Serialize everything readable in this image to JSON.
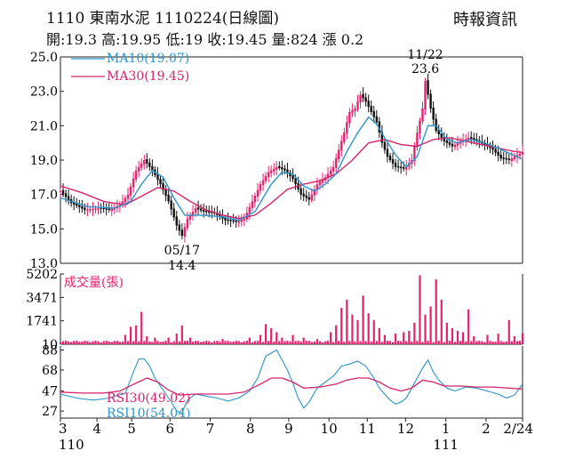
{
  "header": {
    "code": "1110",
    "name": "東南水泥",
    "date_label": "1110224(日線圖)",
    "source": "時報資訊",
    "quote": {
      "open_label": "開:",
      "open": "19.3",
      "high_label": "高:",
      "high": "19.95",
      "low_label": "低:",
      "low": "19",
      "close_label": "收:",
      "close": "19.45",
      "volume_label": "量:",
      "volume": "824",
      "change_label": "漲",
      "change": "0.2"
    }
  },
  "colors": {
    "up": "#e8206f",
    "down": "#111111",
    "ma10": "#2c95c9",
    "ma30": "#d6246c",
    "rsi30": "#d6246c",
    "rsi10": "#2c95c9",
    "axis": "#222222"
  },
  "chart_data": [
    {
      "type": "candlestick",
      "panel": "price",
      "yticks": [
        25.0,
        23.0,
        21.0,
        19.0,
        17.0,
        15.0,
        13.0
      ],
      "ylim": [
        13.0,
        25.0
      ],
      "legend": [
        {
          "label": "MA10(19.07)",
          "color": "#2c95c9"
        },
        {
          "label": "MA30(19.45)",
          "color": "#d6246c"
        }
      ],
      "annotations": [
        {
          "date": "11/22",
          "value": "23.6",
          "kind": "high"
        },
        {
          "date": "05/17",
          "value": "14.4",
          "kind": "low"
        }
      ],
      "price_path": [
        [
          0,
          17.2
        ],
        [
          4,
          16.5
        ],
        [
          9,
          16.1
        ],
        [
          14,
          16.2
        ],
        [
          18,
          16.1
        ],
        [
          22,
          16.4
        ],
        [
          25,
          17.0
        ],
        [
          28,
          18.4
        ],
        [
          31,
          19.0
        ],
        [
          34,
          18.4
        ],
        [
          37,
          17.6
        ],
        [
          40,
          16.6
        ],
        [
          43,
          15.2
        ],
        [
          45,
          14.6
        ],
        [
          47,
          15.6
        ],
        [
          50,
          16.2
        ],
        [
          53,
          16.0
        ],
        [
          57,
          15.9
        ],
        [
          61,
          15.5
        ],
        [
          65,
          15.4
        ],
        [
          68,
          15.6
        ],
        [
          71,
          16.6
        ],
        [
          74,
          17.6
        ],
        [
          77,
          18.3
        ],
        [
          80,
          18.6
        ],
        [
          83,
          18.4
        ],
        [
          86,
          17.9
        ],
        [
          89,
          17.0
        ],
        [
          92,
          16.7
        ],
        [
          95,
          17.6
        ],
        [
          98,
          18.0
        ],
        [
          101,
          18.6
        ],
        [
          103,
          19.6
        ],
        [
          105,
          20.6
        ],
        [
          107,
          21.8
        ],
        [
          109,
          22.0
        ],
        [
          111,
          22.8
        ],
        [
          113,
          22.4
        ],
        [
          115,
          21.8
        ],
        [
          117,
          21.2
        ],
        [
          119,
          20.0
        ],
        [
          121,
          19.2
        ],
        [
          124,
          18.6
        ],
        [
          127,
          18.5
        ],
        [
          130,
          19.0
        ],
        [
          132,
          20.6
        ],
        [
          134,
          22.0
        ],
        [
          135,
          23.6
        ],
        [
          137,
          22.0
        ],
        [
          139,
          20.7
        ],
        [
          142,
          20.1
        ],
        [
          145,
          19.8
        ],
        [
          148,
          20.1
        ],
        [
          151,
          20.3
        ],
        [
          154,
          20.1
        ],
        [
          157,
          19.9
        ],
        [
          160,
          19.6
        ],
        [
          163,
          19.1
        ],
        [
          166,
          19.0
        ],
        [
          169,
          19.3
        ],
        [
          171,
          19.45
        ]
      ],
      "ma10_path": [
        [
          0,
          16.8
        ],
        [
          10,
          16.3
        ],
        [
          20,
          16.2
        ],
        [
          26,
          16.6
        ],
        [
          30,
          17.6
        ],
        [
          34,
          18.4
        ],
        [
          38,
          18.0
        ],
        [
          42,
          16.8
        ],
        [
          46,
          15.8
        ],
        [
          52,
          15.8
        ],
        [
          60,
          15.7
        ],
        [
          66,
          15.5
        ],
        [
          72,
          16.0
        ],
        [
          78,
          17.6
        ],
        [
          82,
          18.3
        ],
        [
          86,
          18.2
        ],
        [
          90,
          17.5
        ],
        [
          94,
          17.2
        ],
        [
          98,
          17.6
        ],
        [
          102,
          18.2
        ],
        [
          106,
          19.5
        ],
        [
          110,
          20.6
        ],
        [
          114,
          21.5
        ],
        [
          117,
          21.1
        ],
        [
          120,
          20.3
        ],
        [
          124,
          19.3
        ],
        [
          128,
          18.6
        ],
        [
          132,
          19.2
        ],
        [
          136,
          21.0
        ],
        [
          139,
          21.0
        ],
        [
          143,
          20.2
        ],
        [
          147,
          20.0
        ],
        [
          152,
          20.2
        ],
        [
          157,
          20.0
        ],
        [
          162,
          19.7
        ],
        [
          166,
          19.4
        ],
        [
          171,
          19.07
        ]
      ],
      "ma30_path": [
        [
          0,
          17.5
        ],
        [
          8,
          17.1
        ],
        [
          16,
          16.6
        ],
        [
          24,
          16.4
        ],
        [
          30,
          16.9
        ],
        [
          36,
          17.4
        ],
        [
          42,
          17.2
        ],
        [
          48,
          16.6
        ],
        [
          54,
          16.1
        ],
        [
          60,
          15.8
        ],
        [
          66,
          15.6
        ],
        [
          72,
          15.8
        ],
        [
          78,
          16.5
        ],
        [
          84,
          17.3
        ],
        [
          90,
          17.6
        ],
        [
          96,
          17.8
        ],
        [
          102,
          18.2
        ],
        [
          108,
          19.0
        ],
        [
          114,
          20.0
        ],
        [
          120,
          20.2
        ],
        [
          126,
          19.9
        ],
        [
          132,
          19.8
        ],
        [
          138,
          20.2
        ],
        [
          144,
          20.3
        ],
        [
          150,
          20.1
        ],
        [
          156,
          19.9
        ],
        [
          162,
          19.7
        ],
        [
          168,
          19.5
        ],
        [
          171,
          19.45
        ]
      ]
    },
    {
      "type": "bar",
      "panel": "volume",
      "title": "成交量(張)",
      "yticks": [
        5202,
        3471,
        1741,
        10
      ],
      "ylim": [
        10,
        5202
      ],
      "spikes": [
        [
          24,
          700
        ],
        [
          26,
          1300
        ],
        [
          28,
          1400
        ],
        [
          30,
          2400
        ],
        [
          32,
          600
        ],
        [
          35,
          500
        ],
        [
          40,
          500
        ],
        [
          43,
          800
        ],
        [
          45,
          1400
        ],
        [
          48,
          500
        ],
        [
          60,
          400
        ],
        [
          70,
          500
        ],
        [
          74,
          700
        ],
        [
          76,
          1500
        ],
        [
          78,
          1200
        ],
        [
          80,
          900
        ],
        [
          82,
          500
        ],
        [
          86,
          700
        ],
        [
          90,
          500
        ],
        [
          95,
          400
        ],
        [
          100,
          900
        ],
        [
          102,
          1400
        ],
        [
          104,
          2700
        ],
        [
          106,
          3300
        ],
        [
          108,
          2200
        ],
        [
          110,
          1800
        ],
        [
          112,
          3600
        ],
        [
          114,
          2300
        ],
        [
          116,
          1800
        ],
        [
          118,
          1200
        ],
        [
          120,
          700
        ],
        [
          124,
          800
        ],
        [
          127,
          900
        ],
        [
          129,
          1000
        ],
        [
          131,
          1600
        ],
        [
          133,
          5100
        ],
        [
          135,
          2200
        ],
        [
          137,
          2800
        ],
        [
          139,
          4800
        ],
        [
          141,
          3300
        ],
        [
          143,
          1600
        ],
        [
          145,
          1200
        ],
        [
          147,
          1000
        ],
        [
          149,
          900
        ],
        [
          151,
          2600
        ],
        [
          153,
          600
        ],
        [
          158,
          700
        ],
        [
          162,
          800
        ],
        [
          166,
          1800
        ],
        [
          168,
          600
        ],
        [
          171,
          824
        ]
      ]
    },
    {
      "type": "line",
      "panel": "rsi",
      "yticks": [
        88,
        68,
        47,
        27
      ],
      "ylim": [
        20,
        92
      ],
      "legend": [
        {
          "label": "RSI30(49.02)",
          "color": "#d6246c"
        },
        {
          "label": "RSI10(54.04)",
          "color": "#2c95c9"
        }
      ],
      "rsi30_path": [
        [
          0,
          46
        ],
        [
          8,
          45
        ],
        [
          16,
          45
        ],
        [
          22,
          47
        ],
        [
          28,
          55
        ],
        [
          32,
          60
        ],
        [
          36,
          56
        ],
        [
          40,
          48
        ],
        [
          44,
          43
        ],
        [
          50,
          44
        ],
        [
          56,
          44
        ],
        [
          62,
          44
        ],
        [
          68,
          46
        ],
        [
          74,
          54
        ],
        [
          78,
          60
        ],
        [
          82,
          60
        ],
        [
          86,
          56
        ],
        [
          90,
          50
        ],
        [
          96,
          51
        ],
        [
          102,
          54
        ],
        [
          106,
          58
        ],
        [
          110,
          60
        ],
        [
          114,
          60
        ],
        [
          118,
          56
        ],
        [
          122,
          50
        ],
        [
          126,
          47
        ],
        [
          130,
          50
        ],
        [
          134,
          58
        ],
        [
          138,
          56
        ],
        [
          142,
          52
        ],
        [
          148,
          52
        ],
        [
          154,
          51
        ],
        [
          160,
          51
        ],
        [
          166,
          50
        ],
        [
          171,
          49.02
        ]
      ],
      "rsi10_path": [
        [
          0,
          44
        ],
        [
          6,
          40
        ],
        [
          12,
          38
        ],
        [
          18,
          40
        ],
        [
          24,
          45
        ],
        [
          27,
          66
        ],
        [
          29,
          79
        ],
        [
          31,
          79
        ],
        [
          33,
          72
        ],
        [
          35,
          60
        ],
        [
          38,
          48
        ],
        [
          41,
          36
        ],
        [
          43,
          27
        ],
        [
          45,
          25
        ],
        [
          47,
          38
        ],
        [
          50,
          44
        ],
        [
          54,
          42
        ],
        [
          58,
          40
        ],
        [
          62,
          37
        ],
        [
          66,
          40
        ],
        [
          70,
          47
        ],
        [
          73,
          60
        ],
        [
          76,
          82
        ],
        [
          78,
          85
        ],
        [
          80,
          88
        ],
        [
          82,
          78
        ],
        [
          84,
          68
        ],
        [
          86,
          55
        ],
        [
          88,
          40
        ],
        [
          90,
          30
        ],
        [
          92,
          36
        ],
        [
          95,
          50
        ],
        [
          98,
          56
        ],
        [
          101,
          62
        ],
        [
          104,
          72
        ],
        [
          107,
          74
        ],
        [
          110,
          77
        ],
        [
          113,
          72
        ],
        [
          116,
          60
        ],
        [
          118,
          50
        ],
        [
          120,
          44
        ],
        [
          122,
          38
        ],
        [
          124,
          34
        ],
        [
          126,
          36
        ],
        [
          128,
          40
        ],
        [
          130,
          50
        ],
        [
          132,
          60
        ],
        [
          134,
          70
        ],
        [
          136,
          78
        ],
        [
          138,
          66
        ],
        [
          140,
          58
        ],
        [
          143,
          50
        ],
        [
          146,
          47
        ],
        [
          150,
          51
        ],
        [
          154,
          50
        ],
        [
          158,
          47
        ],
        [
          162,
          44
        ],
        [
          165,
          40
        ],
        [
          168,
          43
        ],
        [
          171,
          54.04
        ]
      ]
    },
    {
      "type": "axis",
      "panel": "time",
      "x_labels": [
        {
          "label": "3",
          "pos": 0
        },
        {
          "label": "4",
          "pos": 20
        },
        {
          "label": "5",
          "pos": 39
        },
        {
          "label": "6",
          "pos": 60
        },
        {
          "label": "7",
          "pos": 82
        },
        {
          "label": "8",
          "pos": 104
        },
        {
          "label": "9",
          "pos": 125
        },
        {
          "label": "10",
          "pos": 147
        },
        {
          "label": "11",
          "pos": 168
        },
        {
          "label": "12",
          "pos": 189
        },
        {
          "label": "1",
          "pos": 211
        },
        {
          "label": "2",
          "pos": 233
        },
        {
          "label": "2/24",
          "pos": 253
        }
      ],
      "year_labels": [
        {
          "label": "110",
          "pos": 0
        },
        {
          "label": "111",
          "pos": 211
        }
      ]
    }
  ]
}
